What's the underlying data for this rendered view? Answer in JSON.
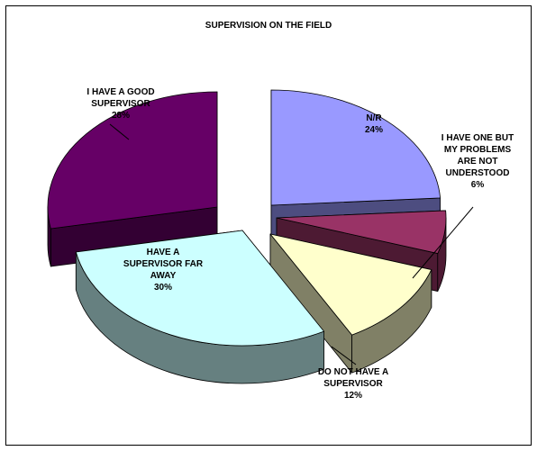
{
  "chart_data": {
    "type": "pie",
    "title": "SUPERVISION ON THE FIELD",
    "slices": [
      {
        "label_lines": [
          "N/R",
          "24%"
        ],
        "value": 24,
        "color": "#9999ff",
        "side_color": "#4d4d80"
      },
      {
        "label_lines": [
          "I HAVE ONE BUT",
          "MY PROBLEMS",
          "ARE NOT",
          "UNDERSTOOD",
          "6%"
        ],
        "value": 6,
        "color": "#993366",
        "side_color": "#4d1a33"
      },
      {
        "label_lines": [
          "DO NOT HAVE A",
          "SUPERVISOR",
          "12%"
        ],
        "value": 12,
        "color": "#ffffcc",
        "side_color": "#808066"
      },
      {
        "label_lines": [
          "HAVE A",
          "SUPERVISOR FAR",
          "AWAY",
          "30%"
        ],
        "value": 30,
        "color": "#ccffff",
        "side_color": "#668080"
      },
      {
        "label_lines": [
          "I HAVE A GOOD",
          "SUPERVISOR",
          "28%"
        ],
        "value": 28,
        "color": "#660066",
        "side_color": "#330033"
      }
    ]
  }
}
